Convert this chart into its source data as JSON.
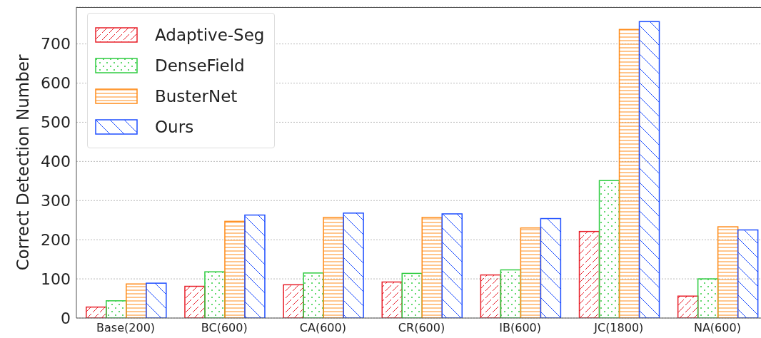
{
  "chart_data": {
    "type": "bar",
    "ylabel": "Correct Detection Number",
    "categories": [
      "Base(200)",
      "BC(600)",
      "CA(600)",
      "CR(600)",
      "IB(600)",
      "JC(1800)",
      "NA(600)"
    ],
    "series": [
      {
        "name": "Adaptive-Seg",
        "color": "#e8202a",
        "values": [
          28,
          81,
          85,
          92,
          110,
          221,
          56
        ]
      },
      {
        "name": "DenseField",
        "color": "#2ecc40",
        "values": [
          44,
          118,
          115,
          114,
          123,
          351,
          100
        ]
      },
      {
        "name": "BusterNet",
        "color": "#ff8c1a",
        "values": [
          87,
          247,
          257,
          257,
          230,
          737,
          233
        ]
      },
      {
        "name": "Ours",
        "color": "#1f4fff",
        "values": [
          89,
          263,
          268,
          266,
          254,
          757,
          225
        ]
      }
    ],
    "ylim": [
      0,
      794
    ],
    "yticks": [
      0,
      100,
      200,
      300,
      400,
      500,
      600,
      700
    ],
    "grid": "y",
    "legend": "top left"
  }
}
